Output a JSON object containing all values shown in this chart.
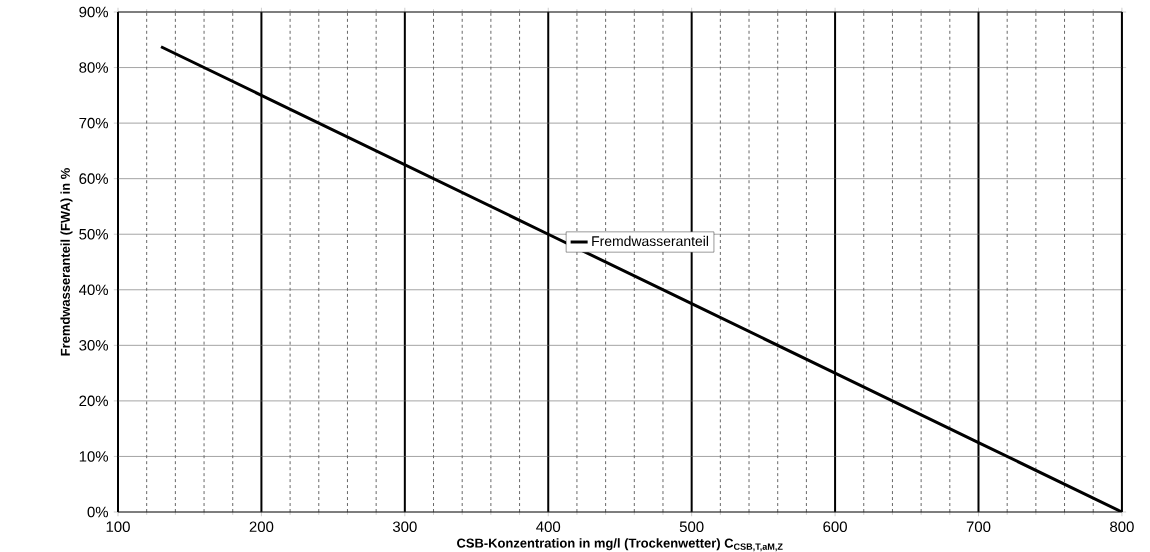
{
  "chart_data": {
    "type": "line",
    "xlabel": "CSB-Konzentration in mg/l (Trockenwetter) C$_{CSB,T,aM,Z}$",
    "ylabel": "Fremdwasseranteil (FWA) in %",
    "x": [
      130,
      200,
      300,
      400,
      500,
      600,
      700,
      800
    ],
    "series": [
      {
        "name": "Fremdwasseranteil",
        "color": "#000000",
        "values": [
          83.75,
          75,
          62.5,
          50,
          37.5,
          25,
          12.5,
          0
        ]
      }
    ],
    "xlim": [
      100,
      800
    ],
    "ylim": [
      0,
      90
    ],
    "xticks": [
      100,
      200,
      300,
      400,
      500,
      600,
      700,
      800
    ],
    "yticks": [
      {
        "value": 0,
        "label": "0%"
      },
      {
        "value": 10,
        "label": "10%"
      },
      {
        "value": 20,
        "label": "20%"
      },
      {
        "value": 30,
        "label": "30%"
      },
      {
        "value": 40,
        "label": "40%"
      },
      {
        "value": 50,
        "label": "50%"
      },
      {
        "value": 60,
        "label": "60%"
      },
      {
        "value": 70,
        "label": "70%"
      },
      {
        "value": 80,
        "label": "80%"
      },
      {
        "value": 90,
        "label": "90%"
      }
    ],
    "grid": true,
    "legend": "center",
    "marker": "none",
    "line_style": "solid"
  }
}
